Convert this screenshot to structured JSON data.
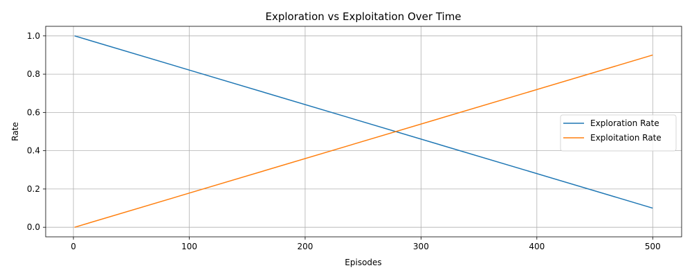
{
  "chart_data": {
    "type": "line",
    "title": "Exploration vs Exploitation Over Time",
    "xlabel": "Episodes",
    "ylabel": "Rate",
    "xlim": [
      -23.95,
      524.95
    ],
    "ylim": [
      -0.05,
      1.05
    ],
    "xticks": [
      0,
      100,
      200,
      300,
      400,
      500
    ],
    "yticks": [
      0.0,
      0.2,
      0.4,
      0.6,
      0.8,
      1.0
    ],
    "xtick_labels": [
      "0",
      "100",
      "200",
      "300",
      "400",
      "500"
    ],
    "ytick_labels": [
      "0.0",
      "0.2",
      "0.4",
      "0.6",
      "0.8",
      "1.0"
    ],
    "grid": true,
    "legend_position": "center-right",
    "series": [
      {
        "name": "Exploration Rate",
        "color": "#1f77b4",
        "x": [
          1,
          500
        ],
        "y": [
          1.0,
          0.1
        ]
      },
      {
        "name": "Exploitation Rate",
        "color": "#ff7f0e",
        "x": [
          1,
          500
        ],
        "y": [
          0.0,
          0.9
        ]
      }
    ]
  }
}
